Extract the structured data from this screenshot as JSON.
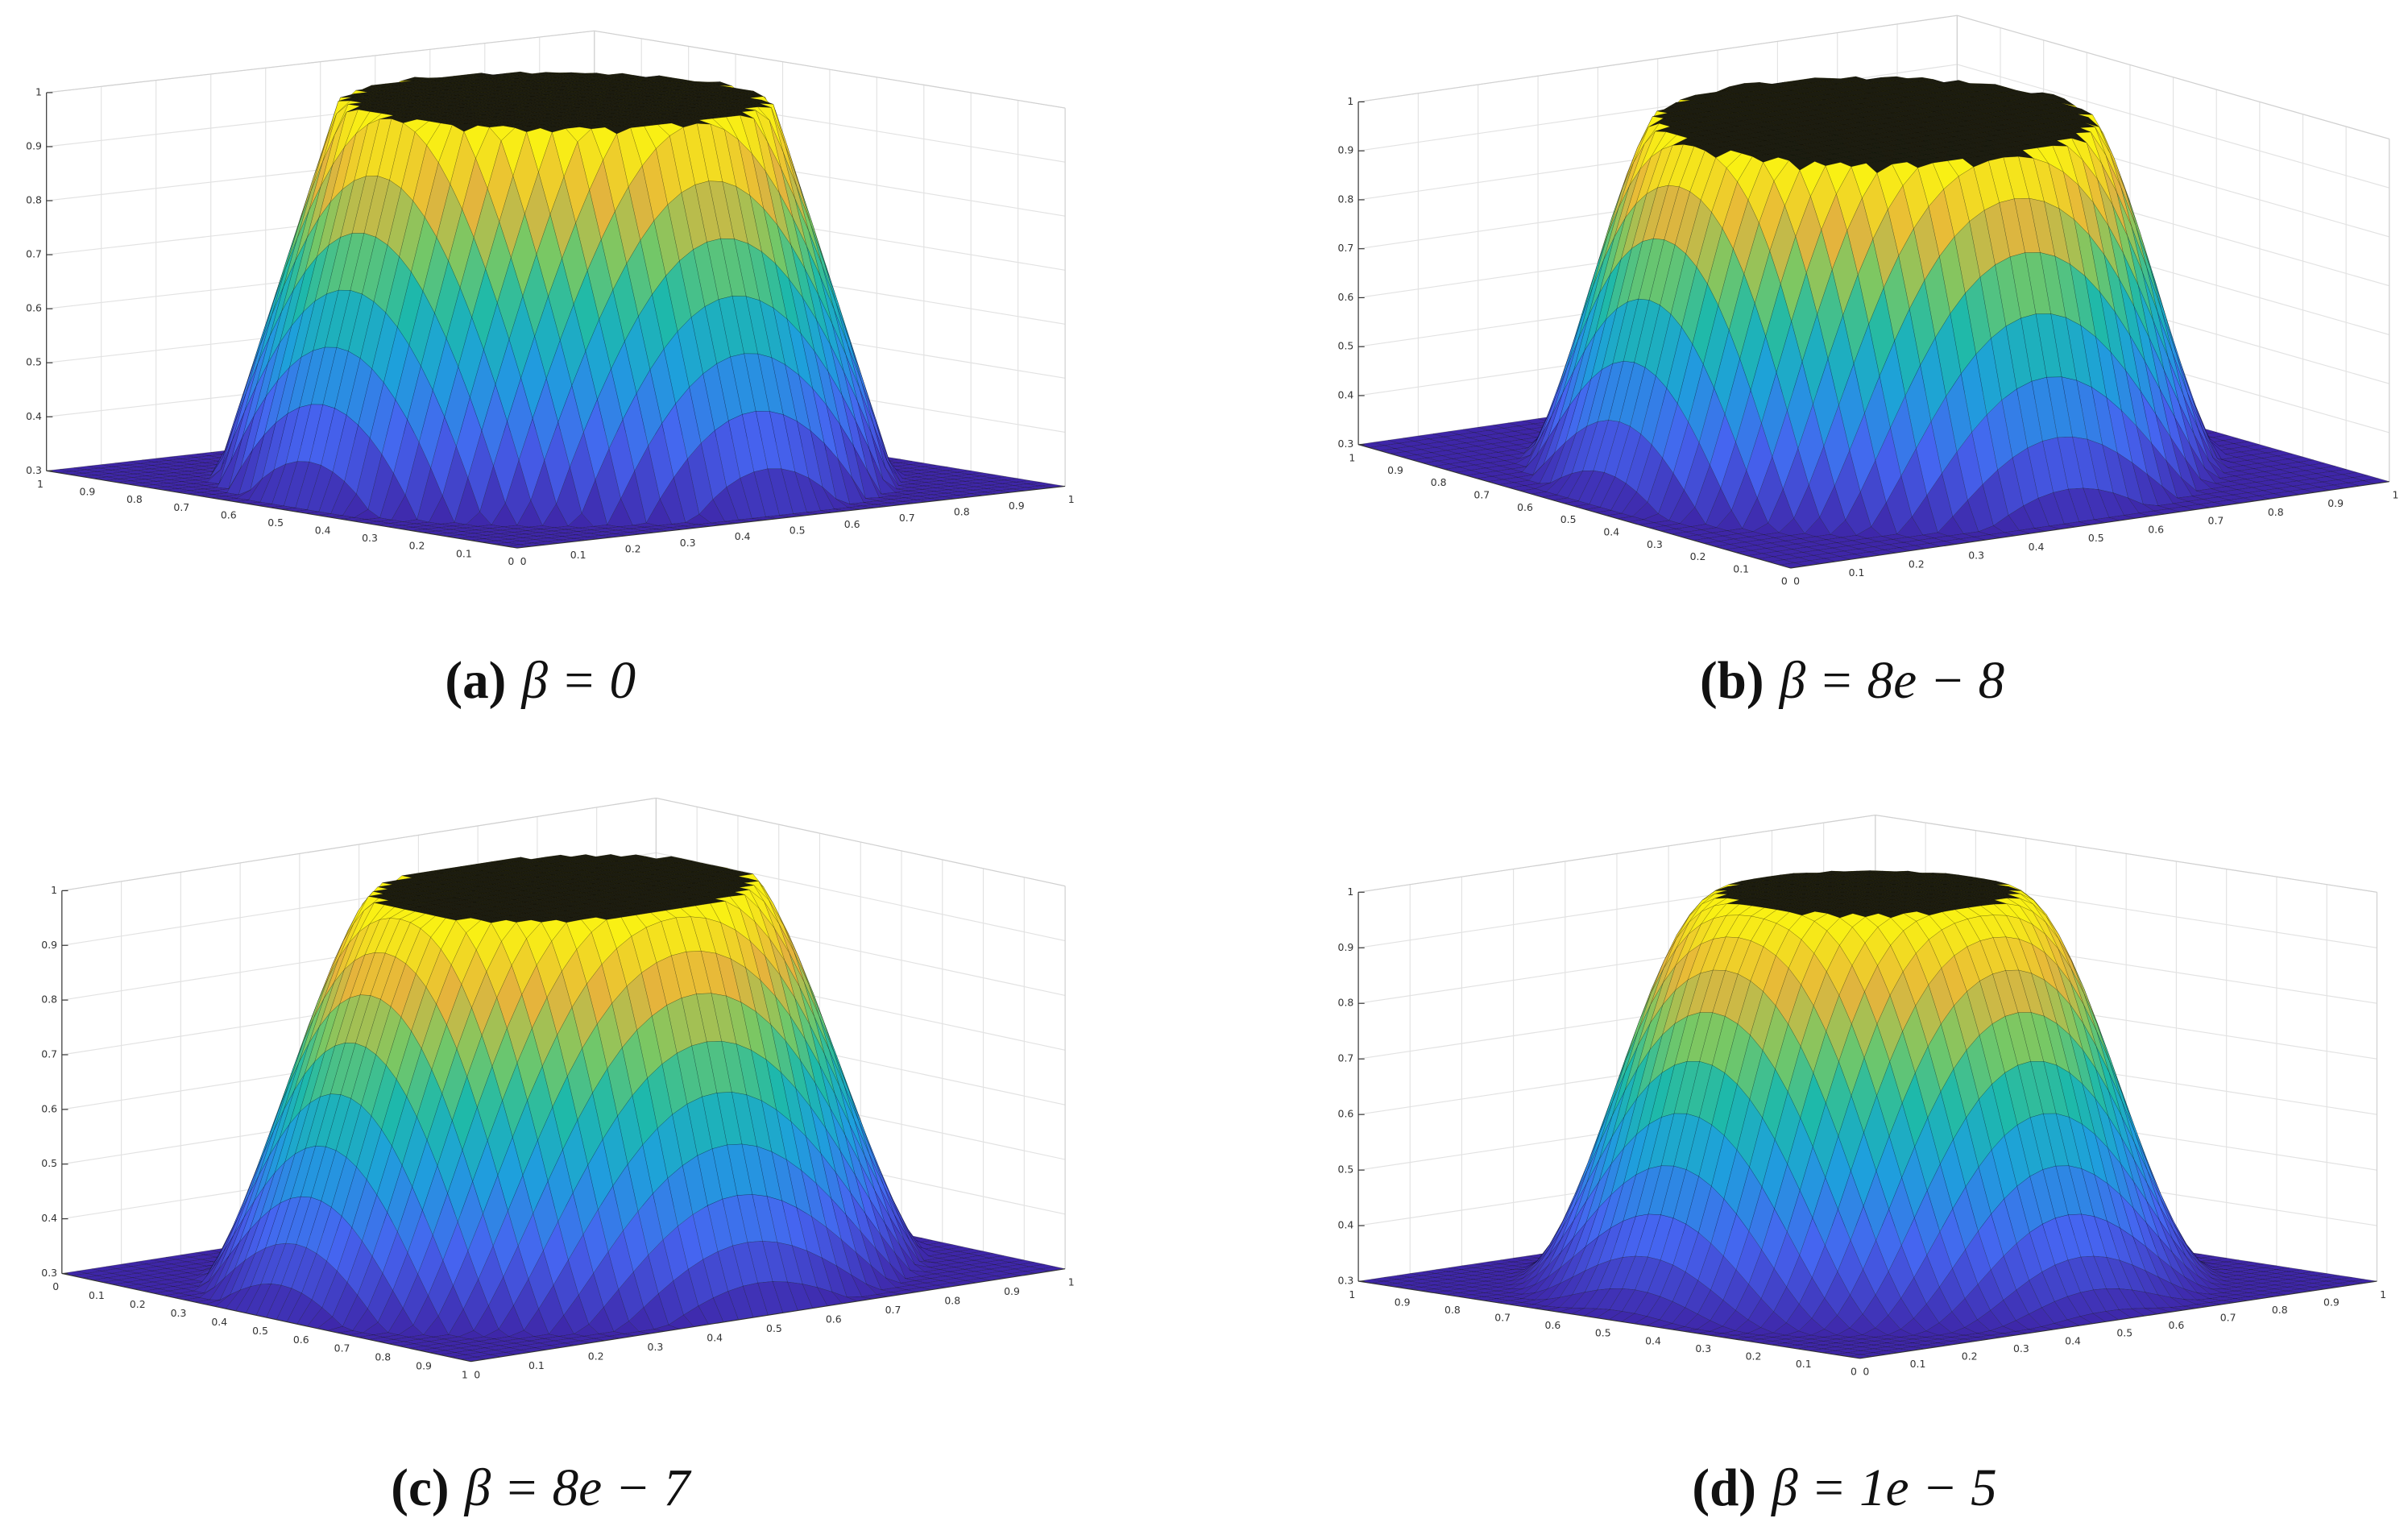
{
  "panels": [
    {
      "label": "(a)",
      "caption": "β = 0",
      "zticks": [
        0.3,
        0.4,
        0.5,
        0.6,
        0.7,
        0.8,
        0.9,
        1
      ],
      "left_ticks": [
        0,
        0.1,
        0.2,
        0.3,
        0.4,
        0.5,
        0.6,
        0.7,
        0.8,
        0.9,
        1
      ],
      "right_ticks": [
        0,
        0.1,
        0.2,
        0.3,
        0.4,
        0.5,
        0.6,
        0.7,
        0.8,
        0.9,
        1
      ]
    },
    {
      "label": "(b)",
      "caption": "β = 8e − 8",
      "zticks": [
        0.3,
        0.4,
        0.5,
        0.6,
        0.7,
        0.8,
        0.9,
        1
      ],
      "left_ticks": [
        0,
        0.1,
        0.2,
        0.3,
        0.4,
        0.5,
        0.6,
        0.7,
        0.8,
        0.9,
        1
      ],
      "right_ticks": [
        0,
        0.1,
        0.2,
        0.3,
        0.4,
        0.5,
        0.6,
        0.7,
        0.8,
        0.9,
        1
      ]
    },
    {
      "label": "(c)",
      "caption": "β = 8e − 7",
      "zticks": [
        0.3,
        0.4,
        0.5,
        0.6,
        0.7,
        0.8,
        0.9,
        1
      ],
      "left_ticks": [
        0,
        0.1,
        0.2,
        0.3,
        0.4,
        0.5,
        0.6,
        0.7,
        0.8,
        0.9,
        1
      ],
      "right_ticks": [
        0,
        0.1,
        0.2,
        0.3,
        0.4,
        0.5,
        0.6,
        0.7,
        0.8,
        0.9,
        1
      ]
    },
    {
      "label": "(d)",
      "caption": "β = 1e − 5",
      "zticks": [
        0.3,
        0.4,
        0.5,
        0.6,
        0.7,
        0.8,
        0.9,
        1
      ],
      "left_ticks": [
        0,
        0.1,
        0.2,
        0.3,
        0.4,
        0.5,
        0.6,
        0.7,
        0.8,
        0.9,
        1
      ],
      "right_ticks": [
        0,
        0.1,
        0.2,
        0.3,
        0.4,
        0.5,
        0.6,
        0.7,
        0.8,
        0.9,
        1
      ]
    }
  ]
}
